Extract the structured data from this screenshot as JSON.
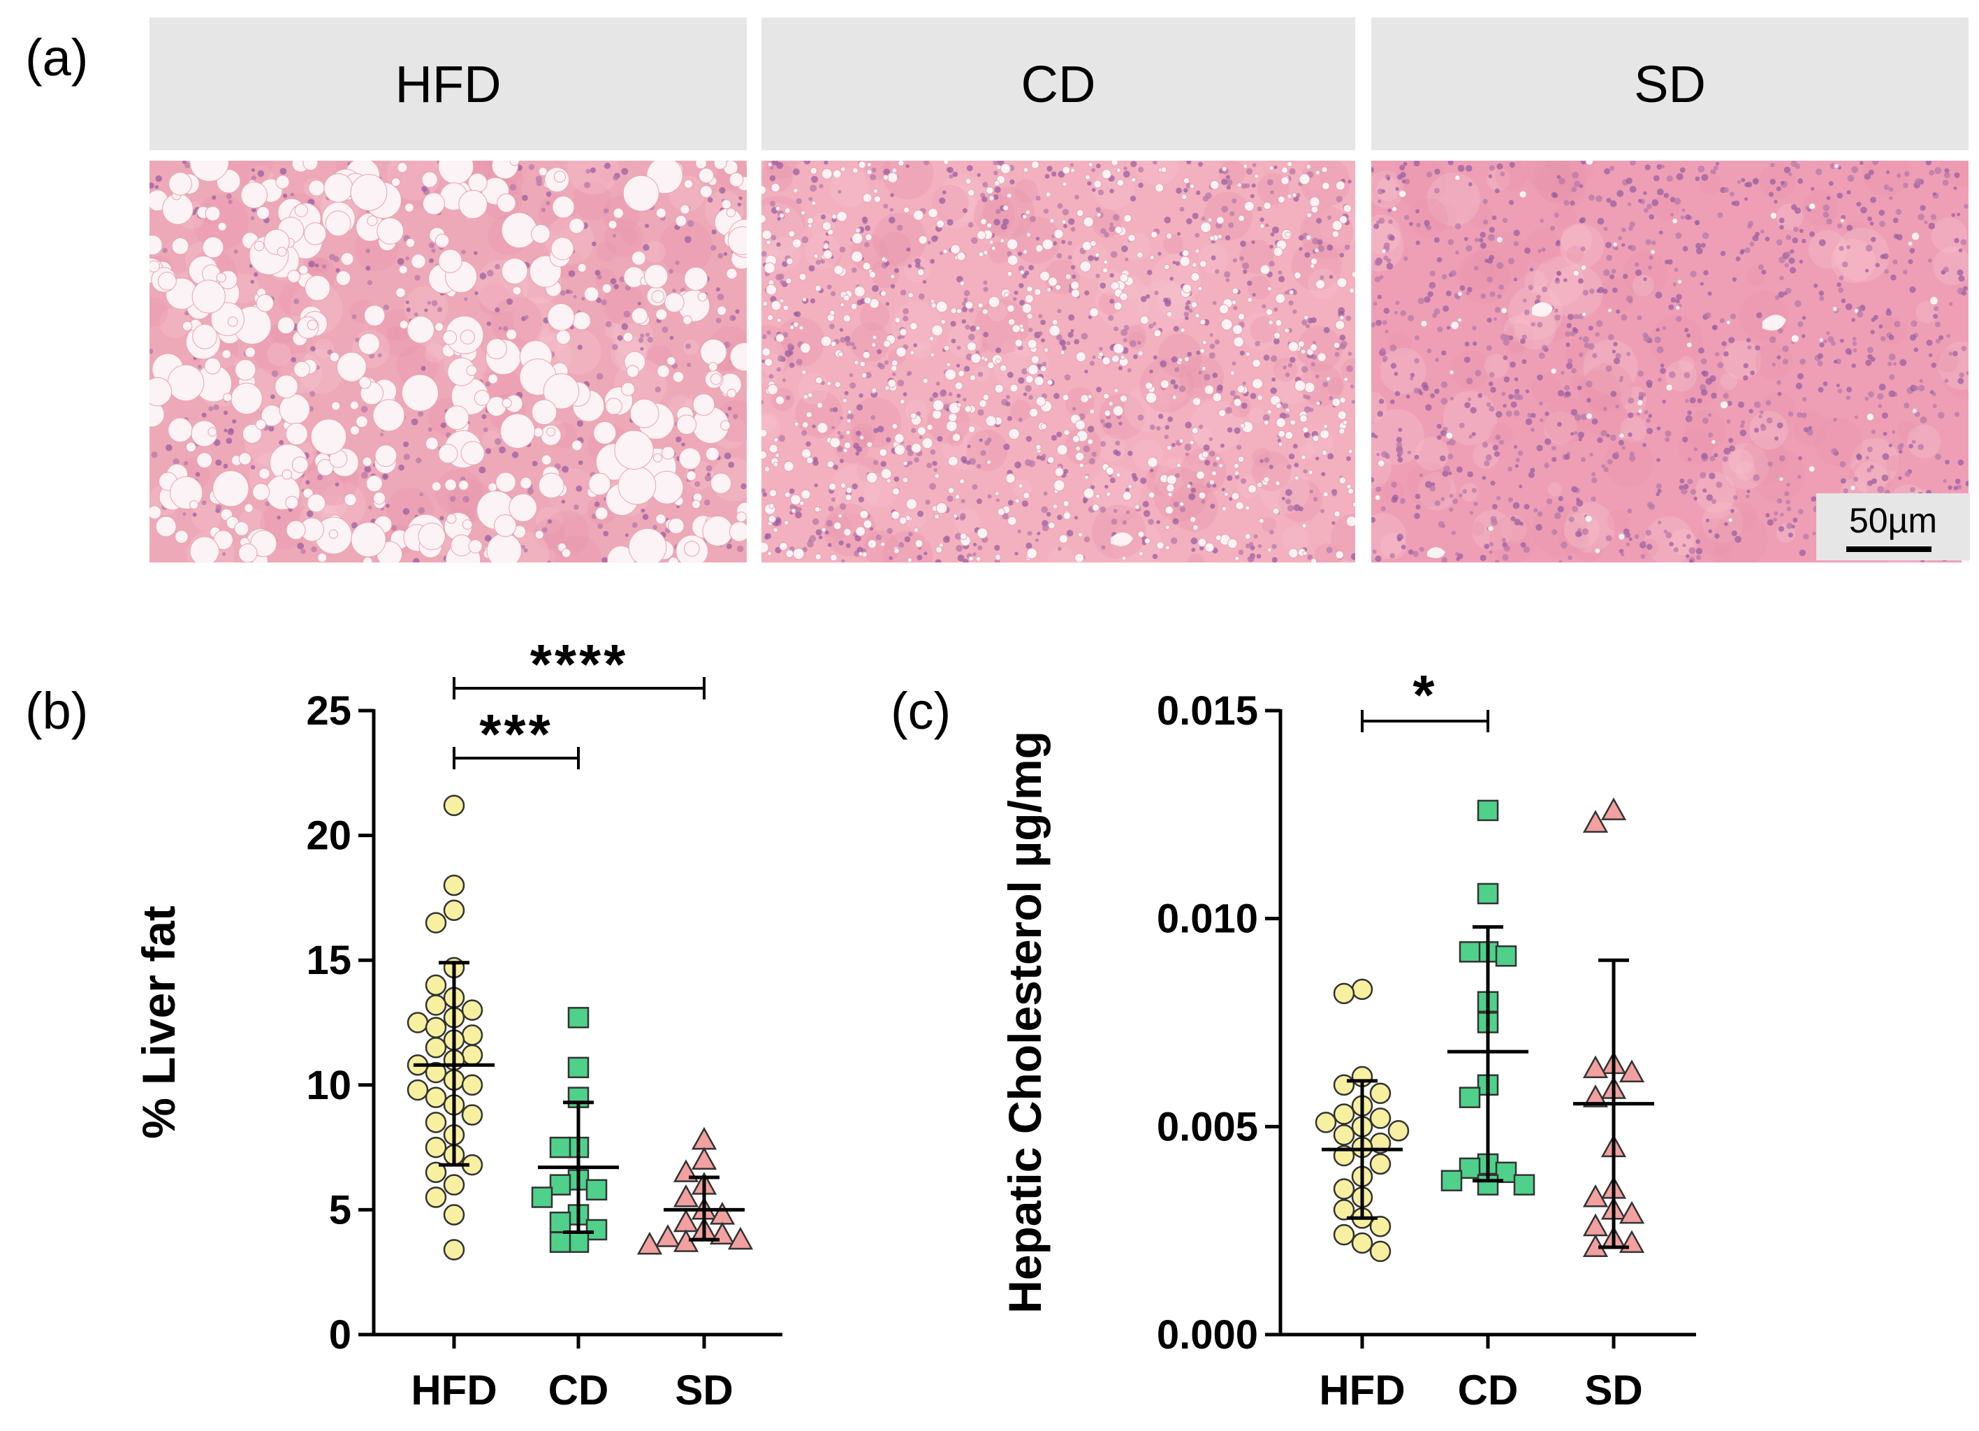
{
  "figure": {
    "panel_a_label": "(a)",
    "panel_b_label": "(b)",
    "panel_c_label": "(c)",
    "histology": [
      {
        "group": "HFD",
        "lipid_load": "high"
      },
      {
        "group": "CD",
        "lipid_load": "medium"
      },
      {
        "group": "SD",
        "lipid_load": "low"
      }
    ],
    "scale_bar_label": "50µm"
  },
  "colors": {
    "HFD": "#f7f0a0",
    "CD": "#4fd18b",
    "SD": "#f2a0a0",
    "tissue": "#f2aab8",
    "header_bg": "#e6e6e6"
  },
  "chart_data": [
    {
      "type": "scatter",
      "panel": "(b)",
      "ylabel": "% Liver fat",
      "categories": [
        "HFD",
        "CD",
        "SD"
      ],
      "ylim": [
        0,
        25
      ],
      "yticks": [
        0,
        5,
        10,
        15,
        20,
        25
      ],
      "series": [
        {
          "category": "HFD",
          "marker": "circle",
          "mean": 10.8,
          "sd_low": 6.8,
          "sd_high": 14.9,
          "values": [
            21.2,
            18.0,
            17.0,
            16.5,
            14.7,
            14.0,
            13.5,
            13.2,
            13.0,
            12.7,
            12.5,
            12.3,
            12.0,
            11.8,
            11.5,
            11.2,
            11.0,
            10.8,
            10.5,
            10.2,
            10.0,
            9.8,
            9.5,
            9.2,
            8.8,
            8.5,
            8.0,
            7.5,
            7.2,
            6.8,
            6.5,
            6.0,
            5.5,
            4.8,
            3.4
          ]
        },
        {
          "category": "CD",
          "marker": "square",
          "mean": 6.7,
          "sd_low": 4.1,
          "sd_high": 9.3,
          "values": [
            12.7,
            10.7,
            9.5,
            7.5,
            7.5,
            6.2,
            6.0,
            5.8,
            5.5,
            4.8,
            4.5,
            4.2,
            3.7,
            3.7
          ]
        },
        {
          "category": "SD",
          "marker": "triangle",
          "mean": 5.0,
          "sd_low": 3.8,
          "sd_high": 6.3,
          "values": [
            7.8,
            7.0,
            6.5,
            6.0,
            5.5,
            5.0,
            4.8,
            4.5,
            4.2,
            4.0,
            3.9,
            3.8,
            3.7,
            3.6
          ]
        }
      ],
      "significance": [
        {
          "from": "HFD",
          "to": "SD",
          "label": "****"
        },
        {
          "from": "HFD",
          "to": "CD",
          "label": "***"
        }
      ]
    },
    {
      "type": "scatter",
      "panel": "(c)",
      "ylabel": "Hepatic Cholesterol µg/mg",
      "categories": [
        "HFD",
        "CD",
        "SD"
      ],
      "ylim": [
        0,
        0.015
      ],
      "yticks": [
        "0.000",
        "0.005",
        "0.010",
        "0.015"
      ],
      "series": [
        {
          "category": "HFD",
          "marker": "circle",
          "mean": 0.00445,
          "sd_low": 0.0028,
          "sd_high": 0.0061,
          "values": [
            0.0083,
            0.0082,
            0.0062,
            0.006,
            0.0058,
            0.0055,
            0.0053,
            0.0052,
            0.0051,
            0.005,
            0.0049,
            0.0048,
            0.0046,
            0.0045,
            0.0043,
            0.0041,
            0.0038,
            0.0035,
            0.0033,
            0.003,
            0.0028,
            0.0026,
            0.0024,
            0.0022,
            0.002
          ]
        },
        {
          "category": "CD",
          "marker": "square",
          "mean": 0.0068,
          "sd_low": 0.0037,
          "sd_high": 0.0098,
          "values": [
            0.0126,
            0.0106,
            0.0092,
            0.0092,
            0.0091,
            0.008,
            0.0075,
            0.006,
            0.0057,
            0.0041,
            0.004,
            0.0039,
            0.0037,
            0.0036,
            0.0036
          ]
        },
        {
          "category": "SD",
          "marker": "triangle",
          "mean": 0.00555,
          "sd_low": 0.0021,
          "sd_high": 0.009,
          "values": [
            0.0126,
            0.0123,
            0.0065,
            0.0064,
            0.0063,
            0.0059,
            0.0057,
            0.0045,
            0.0035,
            0.0033,
            0.003,
            0.0029,
            0.0026,
            0.0023,
            0.0022,
            0.0021
          ]
        }
      ],
      "significance": [
        {
          "from": "HFD",
          "to": "CD",
          "label": "*"
        }
      ]
    }
  ]
}
